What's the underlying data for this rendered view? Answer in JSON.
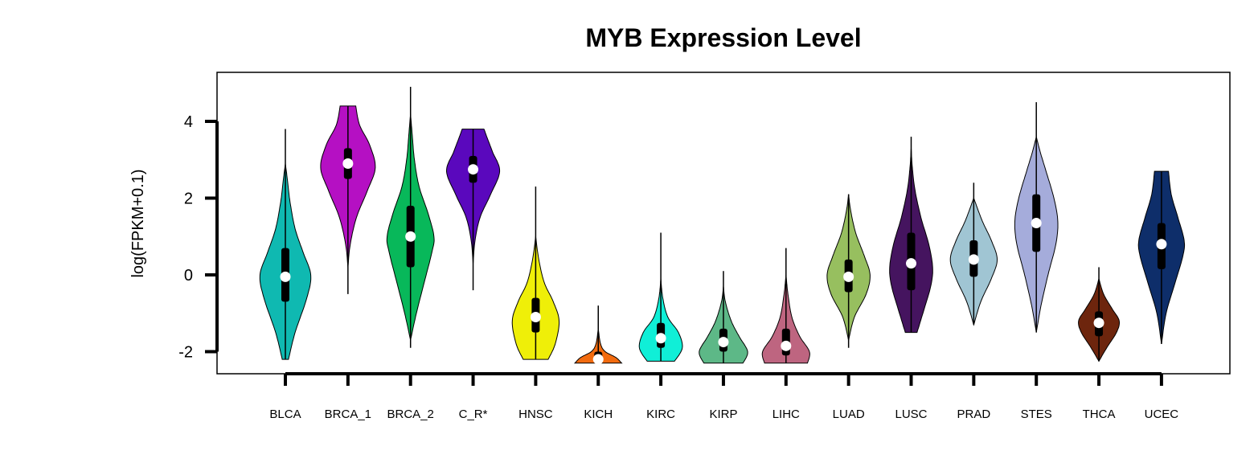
{
  "chart_data": {
    "type": "violin",
    "title": "MYB Expression Level",
    "ylabel": "log(FPKM+0.1)",
    "xlabel": "",
    "ylim": [
      -2.6,
      5.3
    ],
    "yticks": [
      -2,
      0,
      2,
      4
    ],
    "ytick_labels": [
      "-2",
      "0",
      "2",
      "4"
    ],
    "grid": false,
    "legend": "none",
    "categories": [
      "BLCA",
      "BRCA_1",
      "BRCA_2",
      "C_R*",
      "HNSC",
      "KICH",
      "KIRC",
      "KIRP",
      "LIHC",
      "LUAD",
      "LUSC",
      "PRAD",
      "STES",
      "THCA",
      "UCEC"
    ],
    "groups": [
      {
        "name": "BLCA",
        "color": "#0FB9B1",
        "min": -2.2,
        "max": 3.8,
        "q1": -0.7,
        "median": -0.05,
        "q3": 0.7,
        "vmin": -2.2,
        "vmax": 2.9,
        "density": [
          [
            -2.2,
            0.08
          ],
          [
            -1.5,
            0.25
          ],
          [
            -0.6,
            0.55
          ],
          [
            0.0,
            0.65
          ],
          [
            0.6,
            0.45
          ],
          [
            1.2,
            0.25
          ],
          [
            1.9,
            0.12
          ],
          [
            2.5,
            0.05
          ],
          [
            2.9,
            0.0
          ]
        ]
      },
      {
        "name": "BRCA_1",
        "color": "#B510C3",
        "min": -0.5,
        "max": 4.4,
        "q1": 2.5,
        "median": 2.9,
        "q3": 3.3,
        "vmin": 0.2,
        "vmax": 4.4,
        "density": [
          [
            0.2,
            0.0
          ],
          [
            0.8,
            0.06
          ],
          [
            1.5,
            0.22
          ],
          [
            2.2,
            0.5
          ],
          [
            2.8,
            0.7
          ],
          [
            3.4,
            0.55
          ],
          [
            3.9,
            0.3
          ],
          [
            4.4,
            0.2
          ]
        ]
      },
      {
        "name": "BRCA_2",
        "color": "#08B85A",
        "min": -1.9,
        "max": 4.9,
        "q1": 0.2,
        "median": 1.0,
        "q3": 1.8,
        "vmin": -1.7,
        "vmax": 4.2,
        "density": [
          [
            -1.7,
            0.0
          ],
          [
            -1.0,
            0.15
          ],
          [
            -0.2,
            0.35
          ],
          [
            0.6,
            0.55
          ],
          [
            1.0,
            0.6
          ],
          [
            1.6,
            0.45
          ],
          [
            2.3,
            0.22
          ],
          [
            3.0,
            0.1
          ],
          [
            3.7,
            0.04
          ],
          [
            4.2,
            0.0
          ]
        ]
      },
      {
        "name": "C_R*",
        "color": "#5A08BD",
        "min": -0.4,
        "max": 3.8,
        "q1": 2.4,
        "median": 2.75,
        "q3": 3.1,
        "vmin": 0.3,
        "vmax": 3.8,
        "density": [
          [
            0.3,
            0.0
          ],
          [
            0.9,
            0.05
          ],
          [
            1.5,
            0.18
          ],
          [
            2.1,
            0.45
          ],
          [
            2.7,
            0.68
          ],
          [
            3.2,
            0.5
          ],
          [
            3.6,
            0.35
          ],
          [
            3.8,
            0.28
          ]
        ]
      },
      {
        "name": "HNSC",
        "color": "#EFEF08",
        "min": -2.2,
        "max": 2.3,
        "q1": -1.5,
        "median": -1.1,
        "q3": -0.6,
        "vmin": -2.2,
        "vmax": 1.0,
        "density": [
          [
            -2.2,
            0.32
          ],
          [
            -1.8,
            0.5
          ],
          [
            -1.2,
            0.6
          ],
          [
            -0.7,
            0.45
          ],
          [
            -0.2,
            0.22
          ],
          [
            0.4,
            0.08
          ],
          [
            1.0,
            0.0
          ]
        ]
      },
      {
        "name": "KICH",
        "color": "#F26B0F",
        "min": -2.3,
        "max": -0.8,
        "q1": -2.3,
        "median": -2.2,
        "q3": -2.0,
        "vmin": -2.3,
        "vmax": -1.4,
        "density": [
          [
            -2.3,
            0.6
          ],
          [
            -2.15,
            0.45
          ],
          [
            -2.0,
            0.18
          ],
          [
            -1.8,
            0.06
          ],
          [
            -1.4,
            0.0
          ]
        ]
      },
      {
        "name": "KIRC",
        "color": "#10EFD7",
        "min": -2.25,
        "max": 1.1,
        "q1": -1.9,
        "median": -1.65,
        "q3": -1.25,
        "vmin": -2.25,
        "vmax": -0.1,
        "density": [
          [
            -2.25,
            0.35
          ],
          [
            -1.9,
            0.55
          ],
          [
            -1.5,
            0.45
          ],
          [
            -1.1,
            0.18
          ],
          [
            -0.6,
            0.05
          ],
          [
            -0.1,
            0.0
          ]
        ]
      },
      {
        "name": "KIRP",
        "color": "#5DB887",
        "min": -2.3,
        "max": 0.1,
        "q1": -2.0,
        "median": -1.75,
        "q3": -1.4,
        "vmin": -2.3,
        "vmax": -0.3,
        "density": [
          [
            -2.3,
            0.5
          ],
          [
            -2.0,
            0.62
          ],
          [
            -1.6,
            0.4
          ],
          [
            -1.2,
            0.2
          ],
          [
            -0.7,
            0.05
          ],
          [
            -0.3,
            0.0
          ]
        ]
      },
      {
        "name": "LIHC",
        "color": "#BE6580",
        "min": -2.3,
        "max": 0.7,
        "q1": -2.1,
        "median": -1.85,
        "q3": -1.4,
        "vmin": -2.3,
        "vmax": 0.0,
        "density": [
          [
            -2.3,
            0.55
          ],
          [
            -2.0,
            0.6
          ],
          [
            -1.6,
            0.35
          ],
          [
            -1.1,
            0.15
          ],
          [
            -0.5,
            0.05
          ],
          [
            0.0,
            0.0
          ]
        ]
      },
      {
        "name": "LUAD",
        "color": "#97BF5F",
        "min": -1.9,
        "max": 2.1,
        "q1": -0.45,
        "median": -0.05,
        "q3": 0.4,
        "vmin": -1.7,
        "vmax": 2.1,
        "density": [
          [
            -1.7,
            0.0
          ],
          [
            -1.1,
            0.15
          ],
          [
            -0.5,
            0.45
          ],
          [
            0.0,
            0.55
          ],
          [
            0.5,
            0.4
          ],
          [
            1.1,
            0.18
          ],
          [
            1.7,
            0.05
          ],
          [
            2.1,
            0.0
          ]
        ]
      },
      {
        "name": "LUSC",
        "color": "#45145F",
        "min": -1.5,
        "max": 3.6,
        "q1": -0.4,
        "median": 0.3,
        "q3": 1.1,
        "vmin": -1.5,
        "vmax": 3.3,
        "density": [
          [
            -1.5,
            0.15
          ],
          [
            -1.0,
            0.3
          ],
          [
            -0.3,
            0.5
          ],
          [
            0.2,
            0.55
          ],
          [
            0.8,
            0.45
          ],
          [
            1.5,
            0.25
          ],
          [
            2.2,
            0.1
          ],
          [
            2.8,
            0.03
          ],
          [
            3.3,
            0.0
          ]
        ]
      },
      {
        "name": "PRAD",
        "color": "#A0C5D3",
        "min": -1.3,
        "max": 2.4,
        "q1": -0.05,
        "median": 0.4,
        "q3": 0.9,
        "vmin": -1.3,
        "vmax": 2.0,
        "density": [
          [
            -1.3,
            0.0
          ],
          [
            -0.7,
            0.18
          ],
          [
            -0.1,
            0.45
          ],
          [
            0.4,
            0.6
          ],
          [
            0.9,
            0.45
          ],
          [
            1.4,
            0.22
          ],
          [
            2.0,
            0.0
          ]
        ]
      },
      {
        "name": "STES",
        "color": "#A5ACDB",
        "min": -1.5,
        "max": 4.5,
        "q1": 0.6,
        "median": 1.35,
        "q3": 2.1,
        "vmin": -1.5,
        "vmax": 3.6,
        "density": [
          [
            -1.5,
            0.0
          ],
          [
            -0.8,
            0.12
          ],
          [
            0.0,
            0.3
          ],
          [
            0.8,
            0.5
          ],
          [
            1.4,
            0.55
          ],
          [
            2.0,
            0.45
          ],
          [
            2.7,
            0.25
          ],
          [
            3.2,
            0.1
          ],
          [
            3.6,
            0.0
          ]
        ]
      },
      {
        "name": "THCA",
        "color": "#6D250D",
        "min": -2.25,
        "max": 0.2,
        "q1": -1.6,
        "median": -1.25,
        "q3": -0.95,
        "vmin": -2.25,
        "vmax": -0.1,
        "density": [
          [
            -2.25,
            0.0
          ],
          [
            -1.9,
            0.2
          ],
          [
            -1.5,
            0.45
          ],
          [
            -1.2,
            0.52
          ],
          [
            -0.9,
            0.35
          ],
          [
            -0.5,
            0.12
          ],
          [
            -0.1,
            0.0
          ]
        ]
      },
      {
        "name": "UCEC",
        "color": "#0E2E6A",
        "min": -1.8,
        "max": 2.7,
        "q1": 0.15,
        "median": 0.8,
        "q3": 1.35,
        "vmin": -1.8,
        "vmax": 2.7,
        "density": [
          [
            -1.8,
            0.0
          ],
          [
            -1.0,
            0.12
          ],
          [
            -0.2,
            0.35
          ],
          [
            0.5,
            0.55
          ],
          [
            0.9,
            0.58
          ],
          [
            1.5,
            0.42
          ],
          [
            2.1,
            0.25
          ],
          [
            2.7,
            0.18
          ]
        ]
      }
    ]
  }
}
